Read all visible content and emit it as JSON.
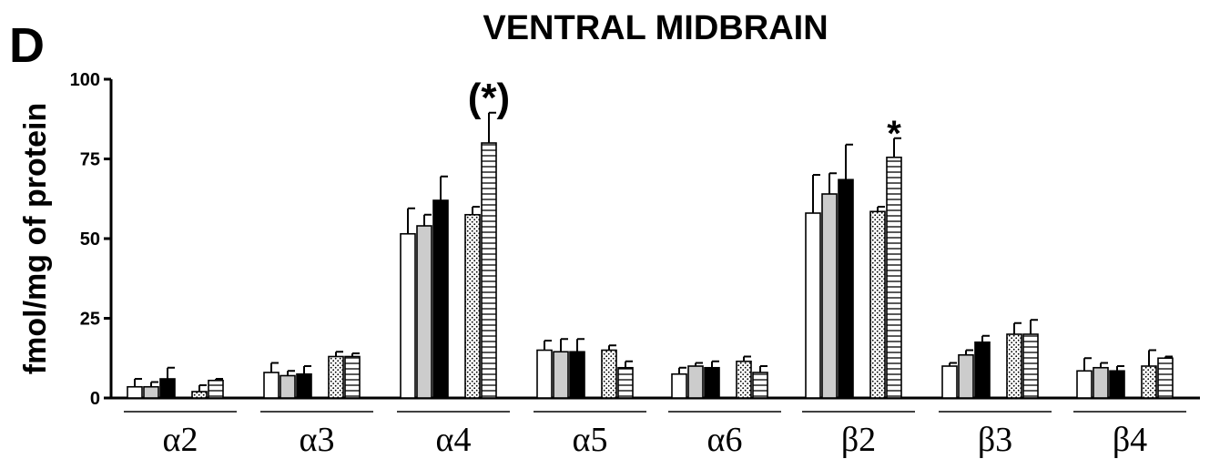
{
  "chart_data": {
    "type": "bar",
    "panel_label": "D",
    "title": "VENTRAL MIDBRAIN",
    "ylabel": "fmol/mg of protein",
    "ylim": [
      0,
      100
    ],
    "yticks": [
      "0",
      "25",
      "50",
      "75",
      "100"
    ],
    "categories": [
      "α2",
      "α3",
      "α4",
      "α5",
      "α6",
      "β2",
      "β3",
      "β4"
    ],
    "series": [
      {
        "fill": "white",
        "values": [
          3.5,
          8,
          51.5,
          15,
          7.5,
          58,
          10,
          8.5
        ],
        "errors": [
          2.5,
          3,
          8,
          3,
          2,
          12,
          1,
          4
        ]
      },
      {
        "fill": "gray",
        "values": [
          3.5,
          7,
          54,
          14.5,
          10,
          64,
          13.5,
          9.5
        ],
        "errors": [
          1.5,
          1.5,
          3.5,
          4,
          1,
          6.5,
          1.5,
          1.5
        ]
      },
      {
        "fill": "black",
        "values": [
          6,
          7.5,
          62,
          14.5,
          9.5,
          68.5,
          17.5,
          8.5
        ],
        "errors": [
          3.5,
          2.5,
          7.5,
          4,
          2,
          11,
          2,
          1.5
        ]
      },
      {
        "fill": "dotted",
        "values": [
          2,
          13,
          57.5,
          15,
          11.5,
          58.5,
          20,
          10
        ],
        "errors": [
          2,
          1.5,
          2.5,
          1.5,
          1.5,
          1.5,
          3.5,
          5
        ]
      },
      {
        "fill": "horizontal-lines",
        "values": [
          5.5,
          13,
          80,
          9.5,
          8,
          75.5,
          20,
          12.5
        ],
        "errors": [
          0.5,
          1,
          9.5,
          2,
          2,
          6,
          4.5,
          0.5
        ]
      }
    ],
    "annotations": [
      {
        "category": "α4",
        "series": 4,
        "text": "(*)"
      },
      {
        "category": "β2",
        "series": 4,
        "text": "*"
      }
    ],
    "grid": false
  }
}
